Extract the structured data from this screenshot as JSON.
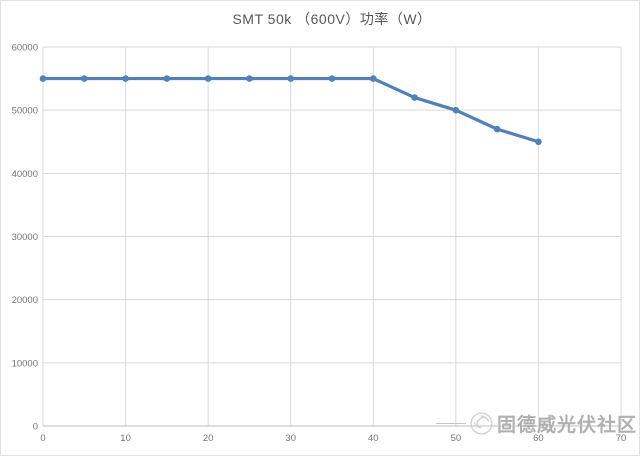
{
  "page": {
    "title": "SMT 50k （600V）功率（W）"
  },
  "watermark": {
    "text": "固德威光伏社区"
  },
  "chart_data": {
    "type": "line",
    "title": "SMT 50k （600V）功率（W）",
    "xlabel": "",
    "ylabel": "",
    "x": [
      0,
      5,
      10,
      15,
      20,
      25,
      30,
      35,
      40,
      45,
      50,
      55,
      60
    ],
    "series": [
      {
        "name": "SMT 50k（600V）功率（W）",
        "values": [
          55000,
          55000,
          55000,
          55000,
          55000,
          55000,
          55000,
          55000,
          55000,
          52000,
          50000,
          47000,
          45000
        ]
      }
    ],
    "xlim": [
      0,
      70
    ],
    "ylim": [
      0,
      60000
    ],
    "x_ticks": [
      0,
      10,
      20,
      30,
      40,
      50,
      60,
      70
    ],
    "y_ticks": [
      0,
      10000,
      20000,
      30000,
      40000,
      50000,
      60000
    ],
    "grid": "major-x-and-y",
    "legend": "none",
    "line_color": "#4F81BD",
    "grid_color": "#D9D9D9",
    "axis_color": "#BFBFBF",
    "tick_label_color": "#757575",
    "title_color": "#595959"
  }
}
